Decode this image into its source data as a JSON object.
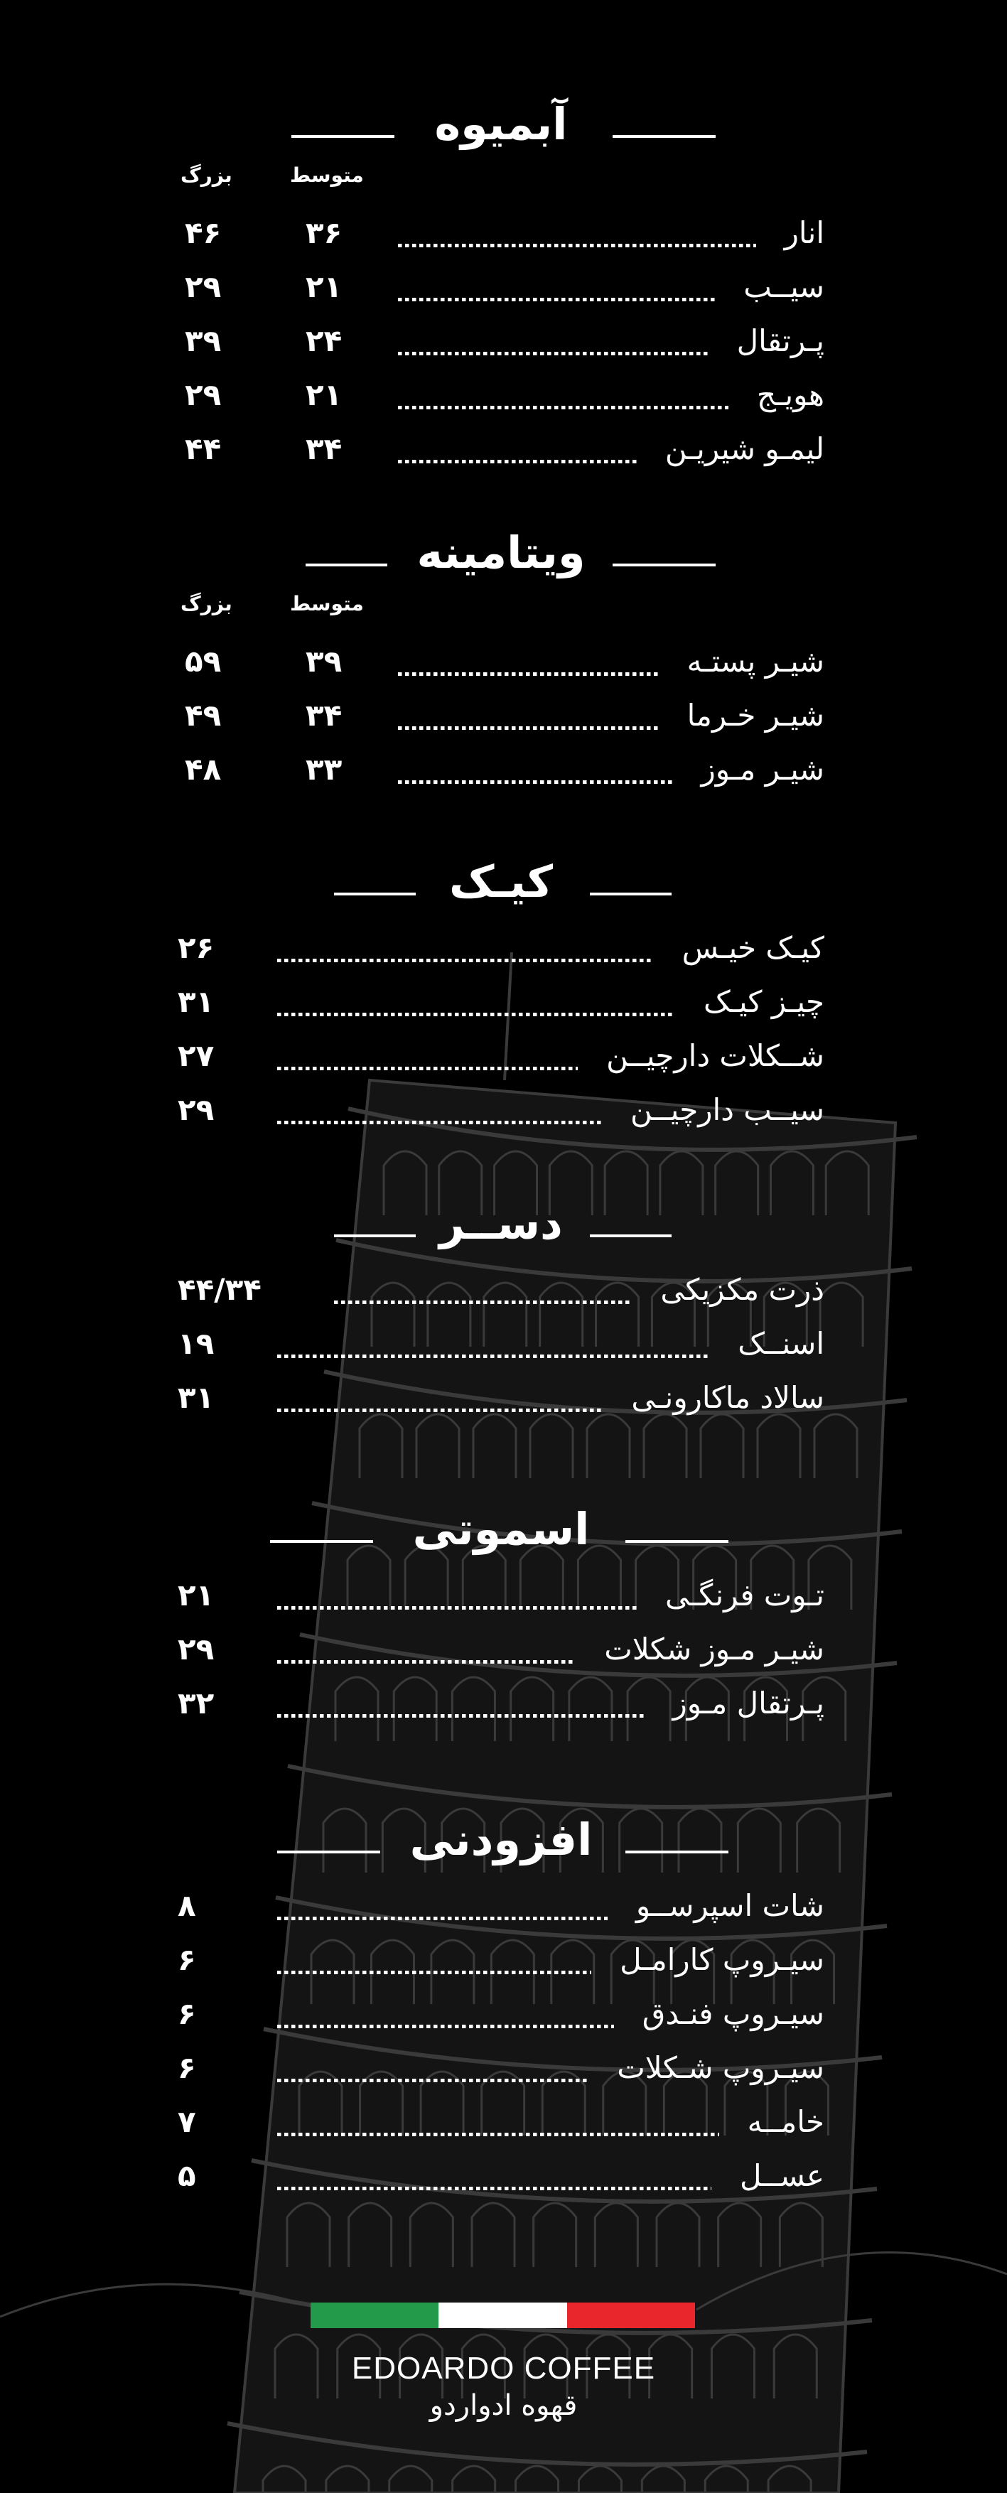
{
  "colors": {
    "background": "#000000",
    "text": "#ffffff",
    "tower_line": "#3a3a3a",
    "flag_green": "#229a4a",
    "flag_white": "#ffffff",
    "flag_red": "#e8262b"
  },
  "sections": [
    {
      "title": "آبمیوه",
      "columns": [
        "متوسط",
        "بزرگ"
      ],
      "items": [
        {
          "name": "انار",
          "medium": "۳۶",
          "large": "۴۶"
        },
        {
          "name": "سیــب",
          "medium": "۲۱",
          "large": "۲۹"
        },
        {
          "name": "پـرتقال",
          "medium": "۲۴",
          "large": "۳۹"
        },
        {
          "name": "هویـج",
          "medium": "۲۱",
          "large": "۲۹"
        },
        {
          "name": "لیمـو شیریـن",
          "medium": "۳۴",
          "large": "۴۴"
        }
      ]
    },
    {
      "title": "ویتامینه",
      "columns": [
        "متوسط",
        "بزرگ"
      ],
      "items": [
        {
          "name": "شیـر پستـه",
          "medium": "۳۹",
          "large": "۵۹"
        },
        {
          "name": "شیـر خـرما",
          "medium": "۳۴",
          "large": "۴۹"
        },
        {
          "name": "شیـر مـوز",
          "medium": "۳۳",
          "large": "۴۸"
        }
      ]
    },
    {
      "title": "کیـک",
      "items": [
        {
          "name": "کیـک خیـس",
          "price": "۲۶"
        },
        {
          "name": "چیـز کیـک",
          "price": "۳۱"
        },
        {
          "name": "شــکلات دارچیــن",
          "price": "۲۷"
        },
        {
          "name": "سیــب دارچیــن",
          "price": "۲۹"
        }
      ]
    },
    {
      "title": "دســر",
      "items": [
        {
          "name": "ذرت مکزیکی",
          "price": "۴۴/۳۴"
        },
        {
          "name": "اسنــک",
          "price": "۱۹"
        },
        {
          "name": "سالاد ماکارونـی",
          "price": "۳۱"
        }
      ]
    },
    {
      "title": "اسموتی",
      "items": [
        {
          "name": "تـوت فرنگـی",
          "price": "۲۱"
        },
        {
          "name": "شیـر مـوز شکلات",
          "price": "۲۹"
        },
        {
          "name": "پـرتقال مـوز",
          "price": "۳۲"
        }
      ]
    },
    {
      "title": "افزودنی",
      "items": [
        {
          "name": "شات اسپرســو",
          "price": "۸"
        },
        {
          "name": "سیـروپ کارامـل",
          "price": "۶"
        },
        {
          "name": "سیـروپ فنـدق",
          "price": "۶"
        },
        {
          "name": "سیـروپ شـکلات",
          "price": "۶"
        },
        {
          "name": "خامــه",
          "price": "۷"
        },
        {
          "name": "عســل",
          "price": "۵"
        }
      ]
    }
  ],
  "footer": {
    "brand_en": "EDOARDO COFFEE",
    "brand_fa": "قهوه ادواردو"
  }
}
